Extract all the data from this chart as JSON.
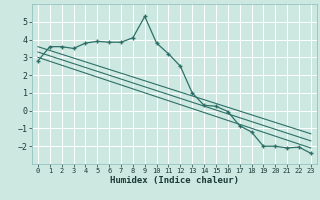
{
  "title": "",
  "xlabel": "Humidex (Indice chaleur)",
  "bg_color": "#cce8e0",
  "grid_color": "#ffffff",
  "line_color": "#2d7068",
  "xlim": [
    -0.5,
    23.5
  ],
  "ylim": [
    -3.0,
    6.0
  ],
  "xticks": [
    0,
    1,
    2,
    3,
    4,
    5,
    6,
    7,
    8,
    9,
    10,
    11,
    12,
    13,
    14,
    15,
    16,
    17,
    18,
    19,
    20,
    21,
    22,
    23
  ],
  "yticks": [
    -2,
    -1,
    0,
    1,
    2,
    3,
    4,
    5
  ],
  "line1_x": [
    0,
    1,
    2,
    3,
    4,
    5,
    6,
    7,
    8,
    9,
    10,
    11,
    12,
    13,
    14,
    15,
    16,
    17,
    18,
    19,
    20,
    21,
    22,
    23
  ],
  "line1_y": [
    2.8,
    3.6,
    3.6,
    3.5,
    3.8,
    3.9,
    3.85,
    3.85,
    4.1,
    5.3,
    3.8,
    3.2,
    2.5,
    1.0,
    0.3,
    0.25,
    -0.05,
    -0.85,
    -1.2,
    -2.0,
    -2.0,
    -2.1,
    -2.05,
    -2.4
  ],
  "line2_x": [
    0,
    23
  ],
  "line2_y": [
    3.6,
    -1.3
  ],
  "line3_x": [
    0,
    23
  ],
  "line3_y": [
    3.3,
    -1.7
  ],
  "line4_x": [
    0,
    23
  ],
  "line4_y": [
    3.0,
    -2.1
  ]
}
